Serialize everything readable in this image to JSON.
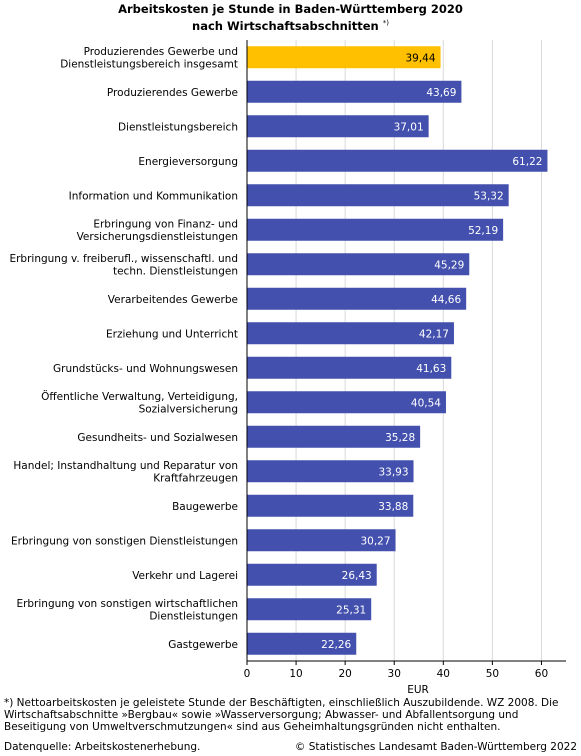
{
  "title_line1": "Arbeitskosten je Stunde in Baden-Württemberg 2020",
  "title_line2": "nach Wirtschaftsabschnitten",
  "title_marker": "*)",
  "footnote": "*) Nettoarbeitskosten je geleistete Stunde der Beschäftigten, einschließlich Auszubildende. WZ 2008. Die Wirtschaftsabschnitte »Bergbau« sowie »Wasserversorgung; Abwasser- und Abfallentsorgung und Beseitigung von Umweltverschmutzungen« sind aus Geheimhaltungsgründen nicht enthalten.",
  "source": "Datenquelle: Arbeitskostenerhebung.",
  "copyright": "© Statistisches Landesamt Baden-Württemberg 2022",
  "colors": {
    "highlight": "#ffc000",
    "bar": "#4350ae",
    "grid": "#d9d9d9",
    "axis": "#000000"
  },
  "chart_data": {
    "type": "bar",
    "orientation": "horizontal",
    "xlabel": "EUR",
    "xlim": [
      0,
      65
    ],
    "xticks": [
      "0",
      "10",
      "20",
      "30",
      "40",
      "50",
      "60"
    ],
    "grid": true,
    "categories": [
      [
        "Produzierendes Gewerbe und",
        "Dienstleistungsbereich insgesamt"
      ],
      [
        "Produzierendes Gewerbe"
      ],
      [
        "Dienstleistungsbereich"
      ],
      [
        "Energieversorgung"
      ],
      [
        "Information und Kommunikation"
      ],
      [
        "Erbringung von Finanz- und",
        "Versicherungsdienstleistungen"
      ],
      [
        "Erbringung v. freiberufl., wissenschaftl. und",
        "techn. Dienstleistungen"
      ],
      [
        "Verarbeitendes Gewerbe"
      ],
      [
        "Erziehung und Unterricht"
      ],
      [
        "Grundstücks- und Wohnungswesen"
      ],
      [
        "Öffentliche Verwaltung, Verteidigung,",
        "Sozialversicherung"
      ],
      [
        "Gesundheits- und Sozialwesen"
      ],
      [
        "Handel; Instandhaltung und Reparatur von",
        "Kraftfahrzeugen"
      ],
      [
        "Baugewerbe"
      ],
      [
        "Erbringung von sonstigen Dienstleistungen"
      ],
      [
        "Verkehr und Lagerei"
      ],
      [
        "Erbringung von sonstigen wirtschaftlichen",
        "Dienstleistungen"
      ],
      [
        "Gastgewerbe"
      ]
    ],
    "values": [
      39.44,
      43.69,
      37.01,
      61.22,
      53.32,
      52.19,
      45.29,
      44.66,
      42.17,
      41.63,
      40.54,
      35.28,
      33.93,
      33.88,
      30.27,
      26.43,
      25.31,
      22.26
    ],
    "value_labels": [
      "39,44",
      "43,69",
      "37,01",
      "61,22",
      "53,32",
      "52,19",
      "45,29",
      "44,66",
      "42,17",
      "41,63",
      "40,54",
      "35,28",
      "33,93",
      "33,88",
      "30,27",
      "26,43",
      "25,31",
      "22,26"
    ],
    "highlight_index": 0
  }
}
